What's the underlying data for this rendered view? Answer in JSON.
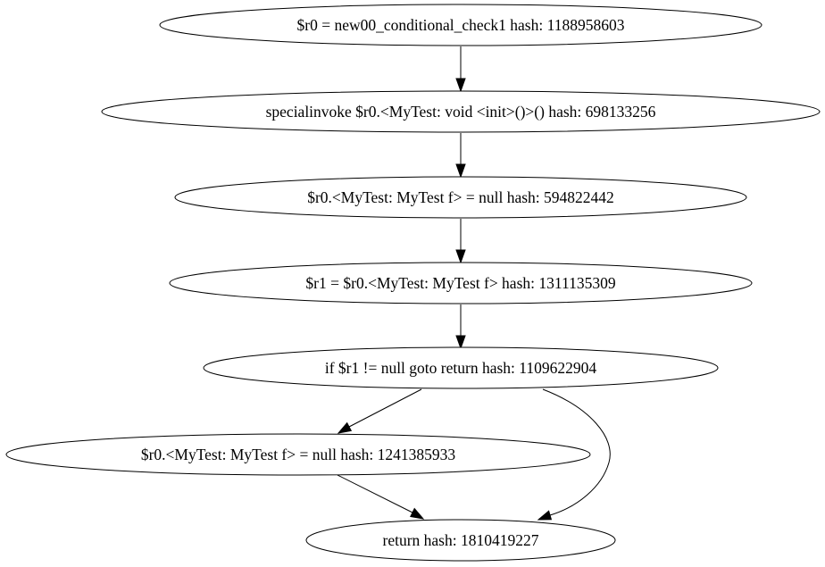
{
  "graph": {
    "nodes": [
      {
        "id": "n0",
        "label": "$r0 = new00_conditional_check1 hash: 1188958603"
      },
      {
        "id": "n1",
        "label": "specialinvoke $r0.<MyTest: void <init>()>() hash: 698133256"
      },
      {
        "id": "n2",
        "label": "$r0.<MyTest: MyTest f> = null hash: 594822442"
      },
      {
        "id": "n3",
        "label": "$r1 = $r0.<MyTest: MyTest f> hash: 1311135309"
      },
      {
        "id": "n4",
        "label": "if $r1 != null goto return hash: 1109622904"
      },
      {
        "id": "n5",
        "label": "$r0.<MyTest: MyTest f> = null hash: 1241385933"
      },
      {
        "id": "n6",
        "label": "return hash: 1810419227"
      }
    ],
    "edges": [
      {
        "from": "n0",
        "to": "n1"
      },
      {
        "from": "n1",
        "to": "n2"
      },
      {
        "from": "n2",
        "to": "n3"
      },
      {
        "from": "n3",
        "to": "n4"
      },
      {
        "from": "n4",
        "to": "n5"
      },
      {
        "from": "n4",
        "to": "n6"
      },
      {
        "from": "n5",
        "to": "n6"
      }
    ]
  }
}
